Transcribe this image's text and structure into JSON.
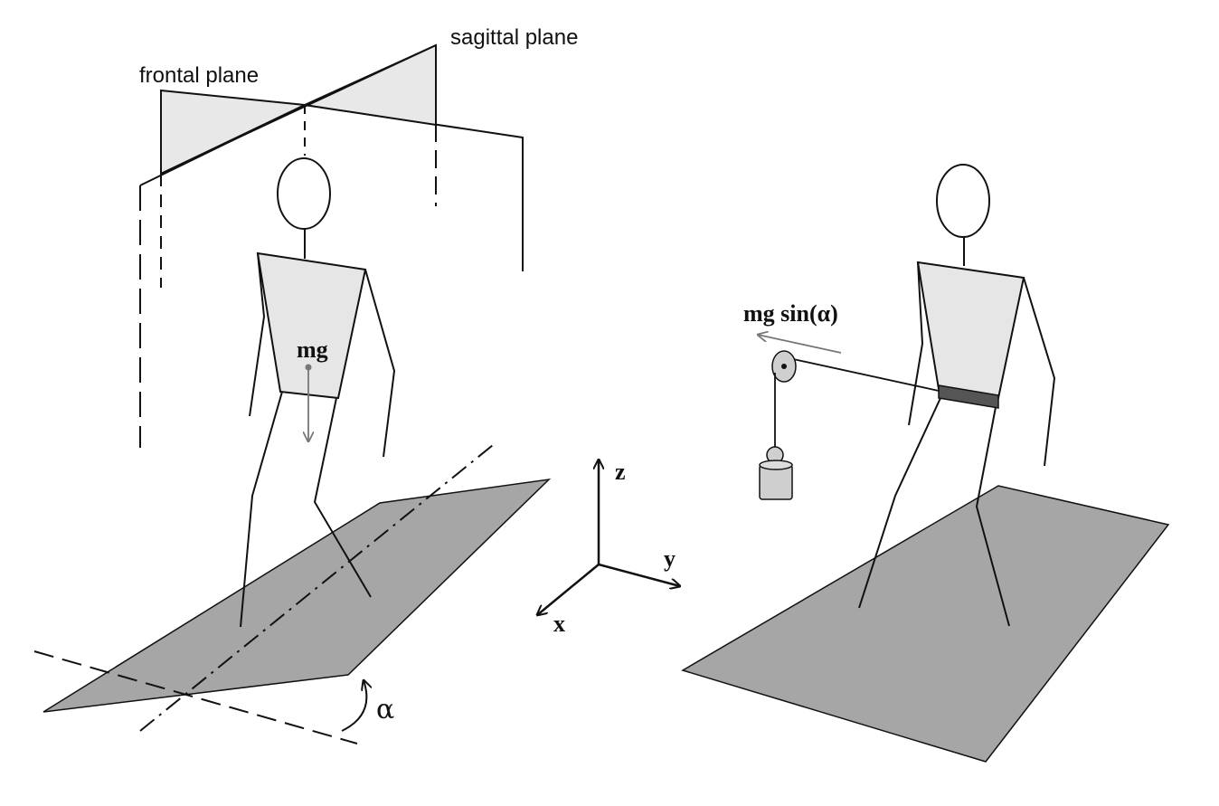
{
  "labels": {
    "sagittal_plane": "sagittal plane",
    "frontal_plane": "frontal plane",
    "mg": "mg",
    "alpha": "α",
    "axis_z": "z",
    "axis_y": "y",
    "axis_x": "x",
    "mg_sin_alpha": "mg sin(α)"
  },
  "colors": {
    "plane_fill": "#e8e8e8",
    "floor_fill": "#a6a6a6",
    "torso_fill": "#e6e6e6",
    "line": "#111111",
    "arrow_gray": "#777777"
  }
}
